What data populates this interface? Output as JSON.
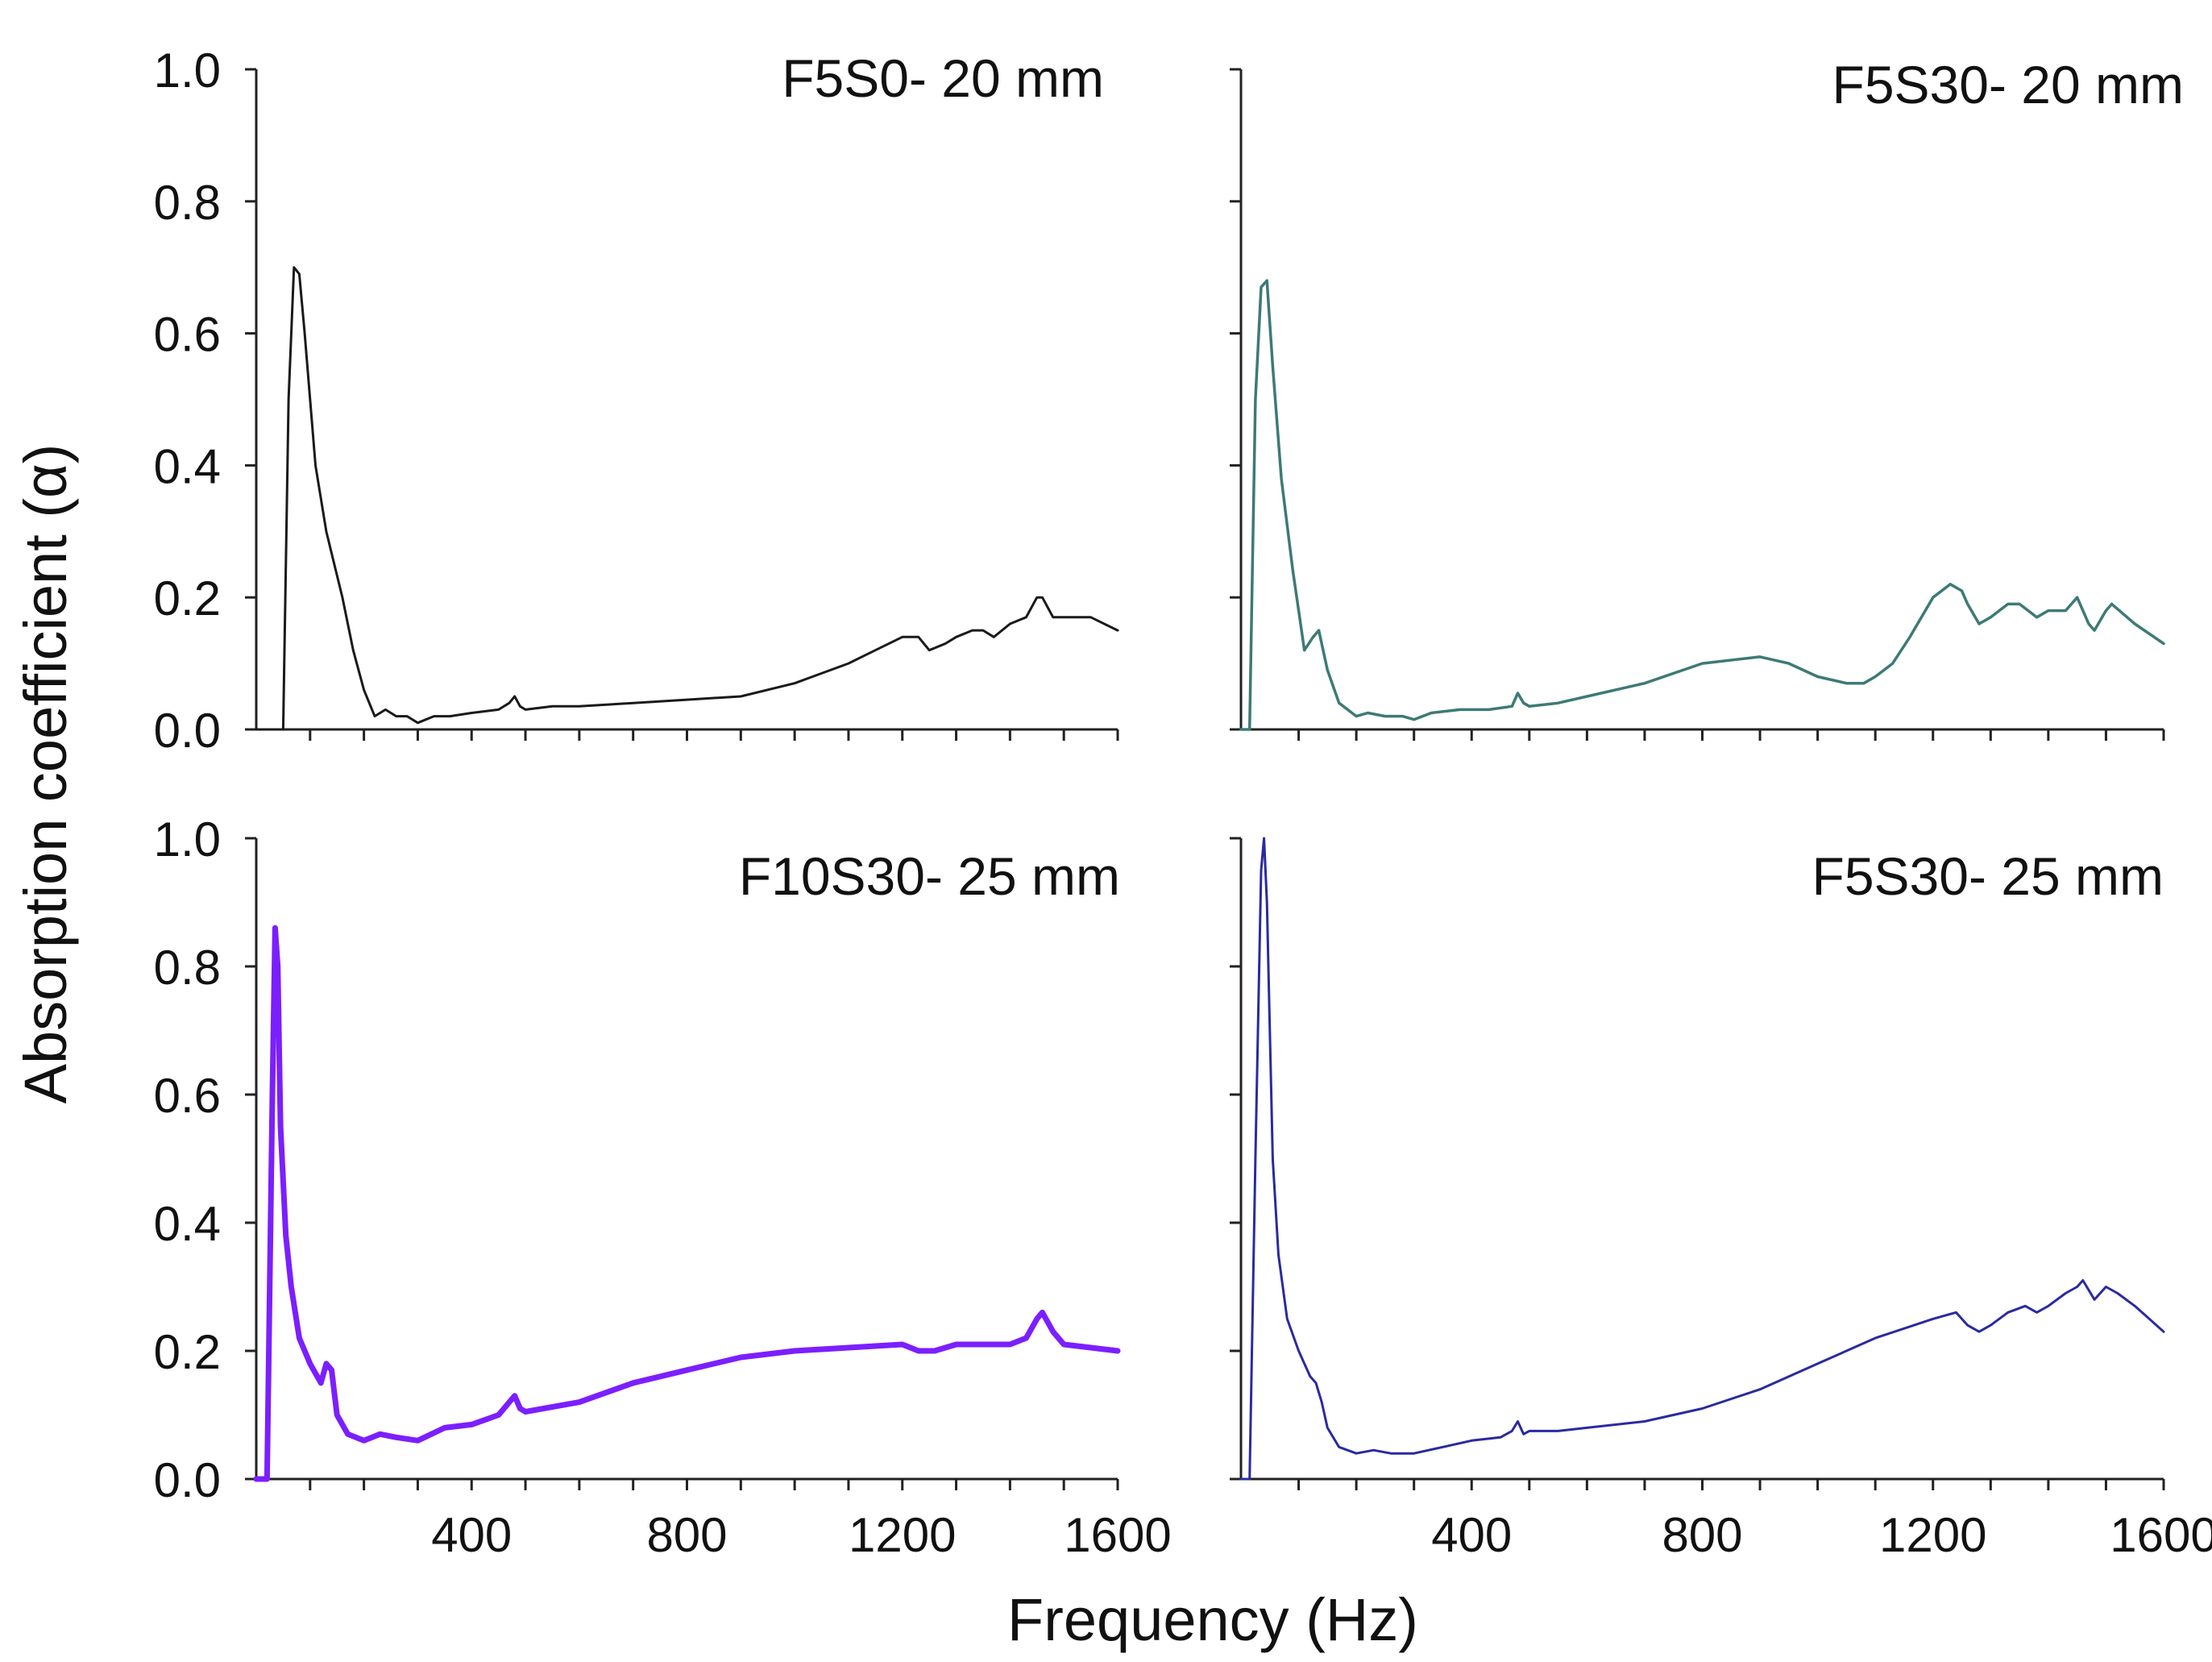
{
  "figure": {
    "ylabel": "Absorption coefficient (α)",
    "xlabel": "Frequency (Hz)"
  },
  "chart_data": [
    {
      "type": "line",
      "title": "F5S0- 20 mm",
      "color": "#1a1a1a",
      "xlim": [
        0,
        1600
      ],
      "ylim": [
        0,
        1.0
      ],
      "xticks": [],
      "yticks": [
        "1.0",
        "0.8",
        "0.6",
        "0.4",
        "0.2",
        "0.0"
      ],
      "x": [
        0,
        50,
        60,
        70,
        80,
        90,
        110,
        130,
        145,
        160,
        180,
        200,
        220,
        240,
        260,
        280,
        300,
        330,
        360,
        400,
        450,
        470,
        480,
        490,
        500,
        550,
        600,
        700,
        800,
        900,
        1000,
        1100,
        1150,
        1200,
        1230,
        1250,
        1280,
        1300,
        1330,
        1350,
        1370,
        1400,
        1430,
        1450,
        1460,
        1480,
        1500,
        1550,
        1600
      ],
      "y": [
        0,
        0,
        0.5,
        0.7,
        0.69,
        0.6,
        0.4,
        0.3,
        0.25,
        0.2,
        0.12,
        0.06,
        0.02,
        0.03,
        0.02,
        0.02,
        0.01,
        0.02,
        0.02,
        0.025,
        0.03,
        0.04,
        0.05,
        0.035,
        0.03,
        0.035,
        0.035,
        0.04,
        0.045,
        0.05,
        0.07,
        0.1,
        0.12,
        0.14,
        0.14,
        0.12,
        0.13,
        0.14,
        0.15,
        0.15,
        0.14,
        0.16,
        0.17,
        0.2,
        0.2,
        0.17,
        0.17,
        0.17,
        0.15
      ]
    },
    {
      "type": "line",
      "title": "F5S30- 20 mm",
      "color": "#3d7a76",
      "xlim": [
        0,
        1600
      ],
      "ylim": [
        0,
        1.0
      ],
      "xticks": [],
      "yticks": [],
      "x": [
        0,
        15,
        25,
        35,
        45,
        55,
        70,
        90,
        100,
        110,
        125,
        135,
        150,
        170,
        200,
        220,
        250,
        280,
        300,
        330,
        380,
        430,
        470,
        480,
        490,
        500,
        550,
        600,
        700,
        800,
        900,
        950,
        1000,
        1050,
        1080,
        1100,
        1130,
        1160,
        1200,
        1230,
        1250,
        1260,
        1280,
        1300,
        1330,
        1350,
        1380,
        1400,
        1430,
        1450,
        1470,
        1480,
        1500,
        1510,
        1550,
        1600
      ],
      "y": [
        0,
        0,
        0.5,
        0.67,
        0.68,
        0.55,
        0.38,
        0.24,
        0.18,
        0.12,
        0.14,
        0.15,
        0.09,
        0.04,
        0.02,
        0.025,
        0.02,
        0.02,
        0.015,
        0.025,
        0.03,
        0.03,
        0.035,
        0.055,
        0.04,
        0.035,
        0.04,
        0.05,
        0.07,
        0.1,
        0.11,
        0.1,
        0.08,
        0.07,
        0.07,
        0.08,
        0.1,
        0.14,
        0.2,
        0.22,
        0.21,
        0.19,
        0.16,
        0.17,
        0.19,
        0.19,
        0.17,
        0.18,
        0.18,
        0.2,
        0.16,
        0.15,
        0.18,
        0.19,
        0.16,
        0.13
      ]
    },
    {
      "type": "line",
      "title": "F10S30- 25 mm",
      "color": "#7b1fff",
      "xlim": [
        0,
        1600
      ],
      "ylim": [
        0,
        1.0
      ],
      "xticks": [
        "400",
        "800",
        "1200",
        "1600"
      ],
      "yticks": [
        "1.0",
        "0.8",
        "0.6",
        "0.4",
        "0.2",
        "0.0"
      ],
      "x": [
        0,
        20,
        25,
        30,
        35,
        40,
        45,
        55,
        65,
        80,
        100,
        120,
        130,
        140,
        150,
        170,
        200,
        230,
        260,
        300,
        350,
        400,
        450,
        470,
        480,
        490,
        500,
        600,
        700,
        800,
        900,
        1000,
        1100,
        1200,
        1230,
        1260,
        1300,
        1350,
        1400,
        1430,
        1450,
        1460,
        1480,
        1500,
        1550,
        1600
      ],
      "y": [
        0,
        0,
        0.3,
        0.6,
        0.86,
        0.8,
        0.55,
        0.38,
        0.3,
        0.22,
        0.18,
        0.15,
        0.18,
        0.17,
        0.1,
        0.07,
        0.06,
        0.07,
        0.065,
        0.06,
        0.08,
        0.085,
        0.1,
        0.12,
        0.13,
        0.11,
        0.105,
        0.12,
        0.15,
        0.17,
        0.19,
        0.2,
        0.205,
        0.21,
        0.2,
        0.2,
        0.21,
        0.21,
        0.21,
        0.22,
        0.25,
        0.26,
        0.23,
        0.21,
        0.205,
        0.2
      ]
    },
    {
      "type": "line",
      "title": "F5S30- 25 mm",
      "color": "#2a2aa0",
      "xlim": [
        0,
        1600
      ],
      "ylim": [
        0,
        1.0
      ],
      "xticks": [
        "400",
        "800",
        "1200",
        "1600"
      ],
      "yticks": [],
      "x": [
        0,
        15,
        25,
        35,
        40,
        45,
        55,
        65,
        80,
        100,
        110,
        120,
        130,
        140,
        150,
        170,
        200,
        230,
        260,
        300,
        350,
        400,
        450,
        470,
        480,
        490,
        500,
        550,
        600,
        700,
        800,
        900,
        1000,
        1100,
        1200,
        1240,
        1260,
        1280,
        1300,
        1330,
        1360,
        1380,
        1400,
        1430,
        1450,
        1460,
        1480,
        1500,
        1520,
        1550,
        1600
      ],
      "y": [
        0,
        0,
        0.5,
        0.95,
        1.0,
        0.9,
        0.5,
        0.35,
        0.25,
        0.2,
        0.18,
        0.16,
        0.15,
        0.12,
        0.08,
        0.05,
        0.04,
        0.045,
        0.04,
        0.04,
        0.05,
        0.06,
        0.065,
        0.075,
        0.09,
        0.07,
        0.075,
        0.075,
        0.08,
        0.09,
        0.11,
        0.14,
        0.18,
        0.22,
        0.25,
        0.26,
        0.24,
        0.23,
        0.24,
        0.26,
        0.27,
        0.26,
        0.27,
        0.29,
        0.3,
        0.31,
        0.28,
        0.3,
        0.29,
        0.27,
        0.23
      ]
    }
  ]
}
